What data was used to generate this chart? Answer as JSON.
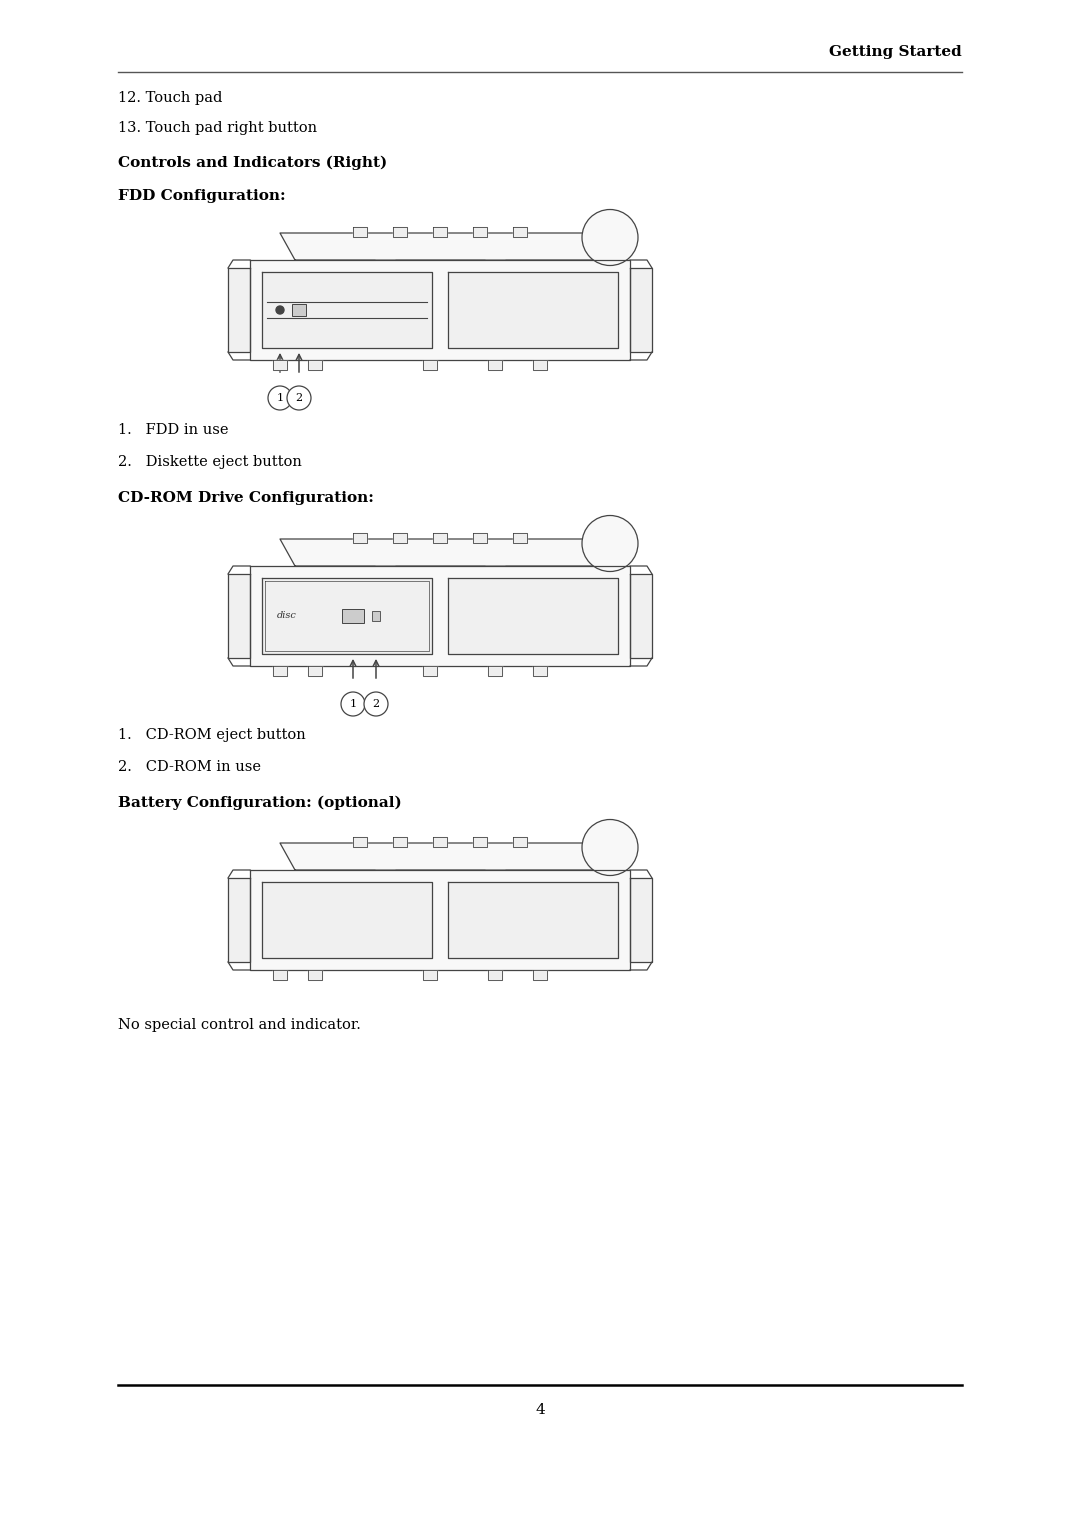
{
  "bg_color": "#ffffff",
  "header_text": "Getting Started",
  "line1": "12. Touch pad",
  "line2": "13. Touch pad right button",
  "section1_title": "Controls and Indicators (Right)",
  "section2_title": "FDD Configuration:",
  "fdd_items": [
    "1.   FDD in use",
    "2.   Diskette eject button"
  ],
  "section3_title": "CD-ROM Drive Configuration:",
  "cdrom_items": [
    "1.   CD-ROM eject button",
    "2.   CD-ROM in use"
  ],
  "section4_title": "Battery Configuration: (optional)",
  "battery_text": "No special control and indicator.",
  "page_number": "4",
  "lc": "#444444",
  "lw": 0.9
}
